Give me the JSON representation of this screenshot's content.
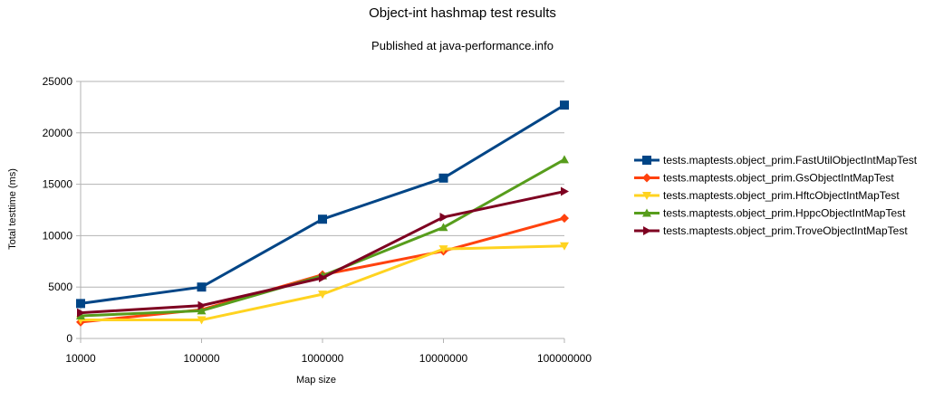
{
  "chart_data": {
    "type": "line",
    "title": "Object-int hashmap test results",
    "subtitle": "Published at java-performance.info",
    "xlabel": "Map size",
    "ylabel": "Total testtime (ms)",
    "categories": [
      "10000",
      "100000",
      "1000000",
      "10000000",
      "100000000"
    ],
    "ylim": [
      0,
      25000
    ],
    "yticks": [
      0,
      5000,
      10000,
      15000,
      20000,
      25000
    ],
    "grid": true,
    "legend_position": "right",
    "series": [
      {
        "name": "tests.maptests.object_prim.FastUtilObjectIntMapTest",
        "color": "#004586",
        "marker": "square",
        "values": [
          3400,
          5000,
          11600,
          15600,
          22700
        ]
      },
      {
        "name": "tests.maptests.object_prim.GsObjectIntMapTest",
        "color": "#ff420e",
        "marker": "diamond",
        "values": [
          1600,
          2800,
          6200,
          8500,
          11700
        ]
      },
      {
        "name": "tests.maptests.object_prim.HftcObjectIntMapTest",
        "color": "#ffd320",
        "marker": "triangle-down",
        "values": [
          1800,
          1800,
          4300,
          8700,
          9000
        ]
      },
      {
        "name": "tests.maptests.object_prim.HppcObjectIntMapTest",
        "color": "#579d1c",
        "marker": "triangle-up",
        "values": [
          2200,
          2700,
          6100,
          10800,
          17400
        ]
      },
      {
        "name": "tests.maptests.object_prim.TroveObjectIntMapTest",
        "color": "#7e0021",
        "marker": "triangle-right",
        "values": [
          2500,
          3200,
          5900,
          11800,
          14300
        ]
      }
    ]
  }
}
